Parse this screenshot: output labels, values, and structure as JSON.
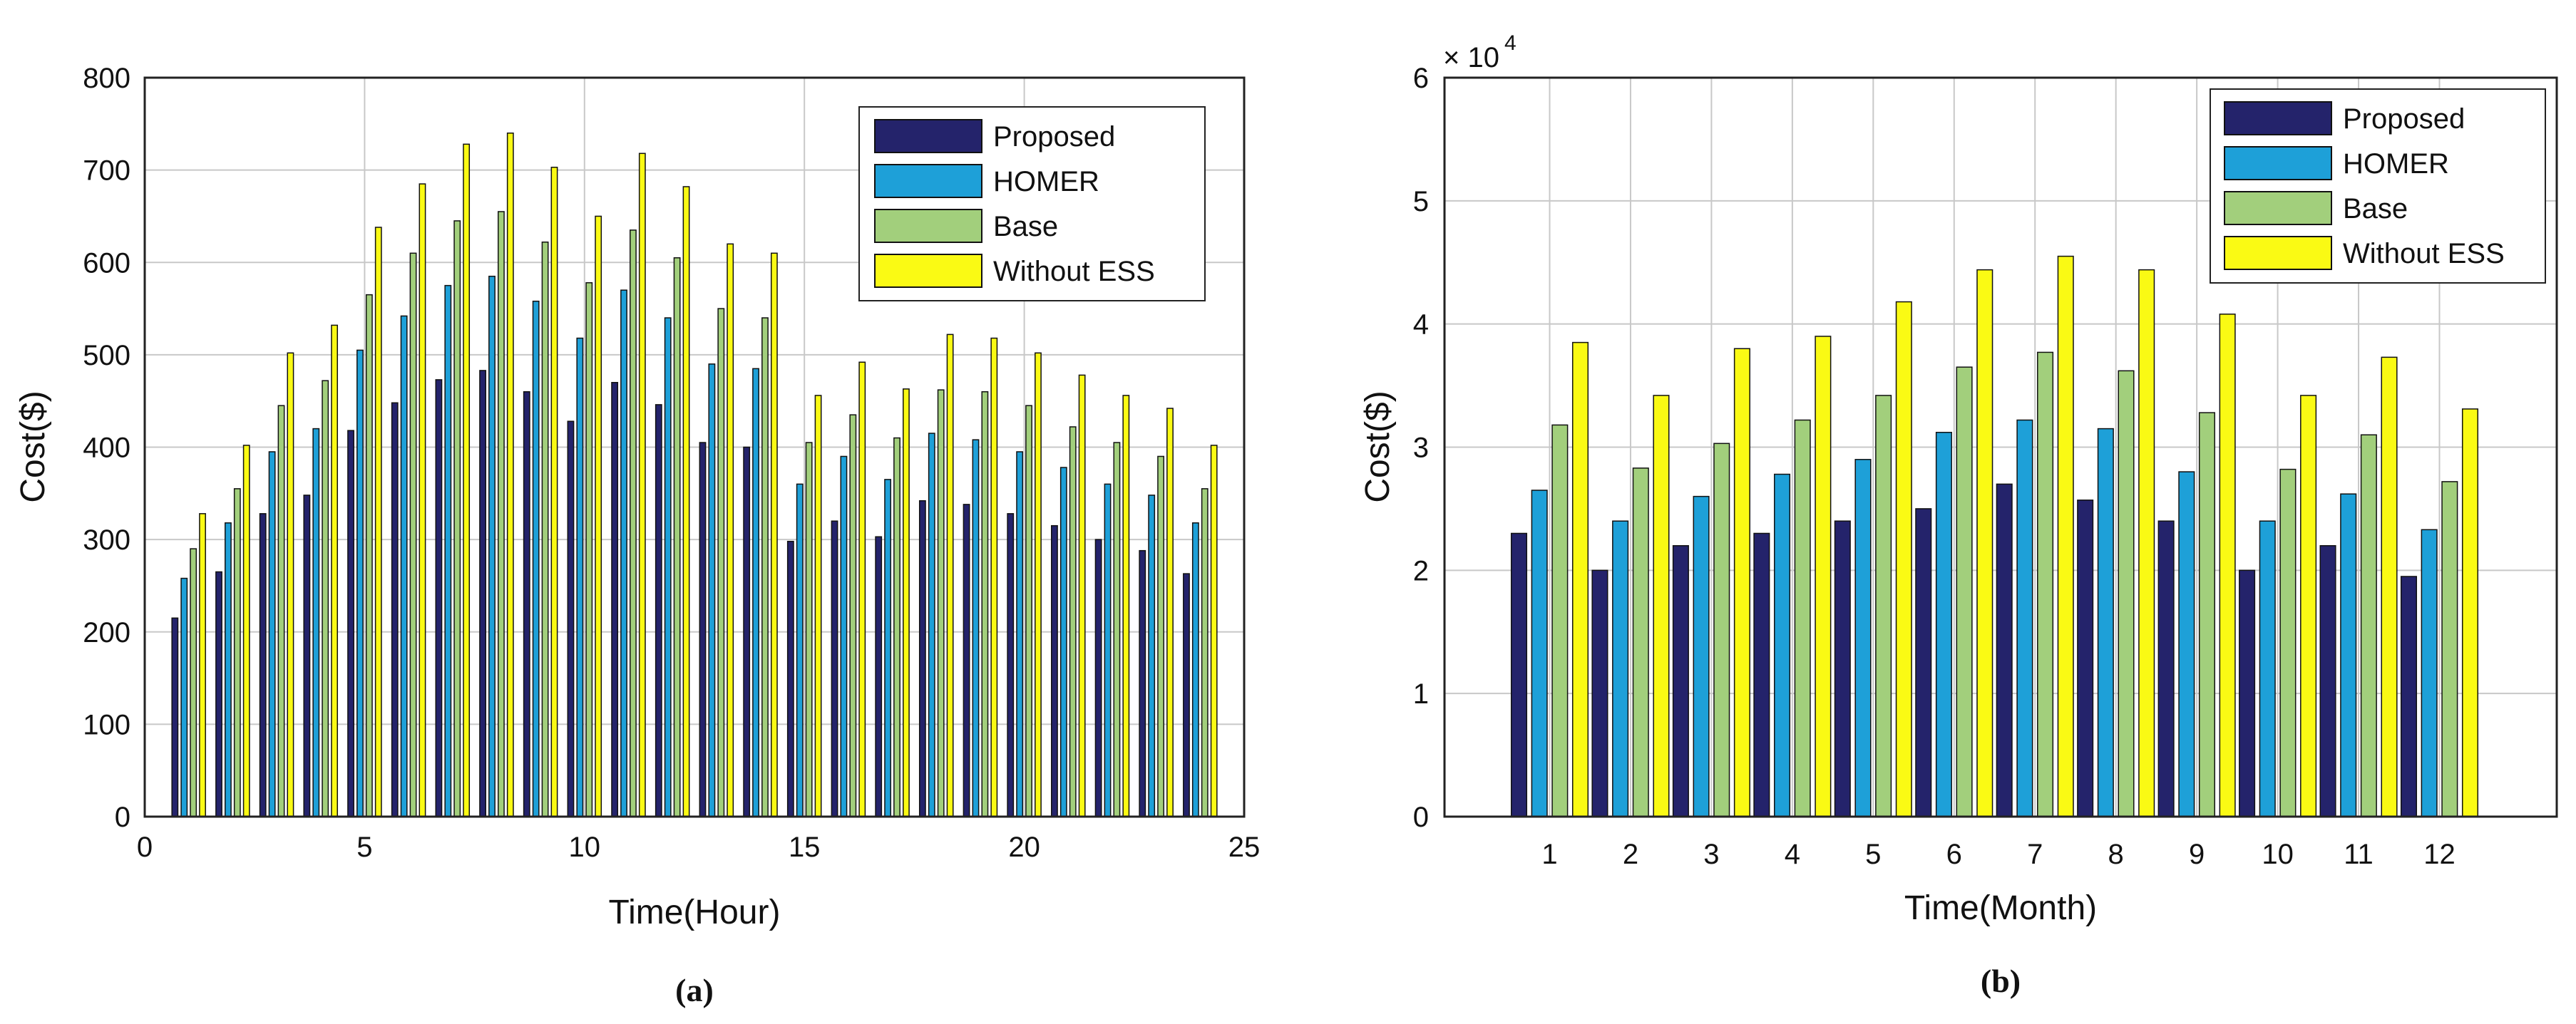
{
  "chart_data": [
    {
      "type": "bar",
      "panel": "(a)",
      "title": "",
      "xlabel": "Time(Hour)",
      "ylabel": "Cost($)",
      "xlim": [
        0,
        25
      ],
      "ylim": [
        0,
        800
      ],
      "xticks": [
        "0",
        "5",
        "10",
        "15",
        "20",
        "25"
      ],
      "yticks": [
        "0",
        "100",
        "200",
        "300",
        "400",
        "500",
        "600",
        "700",
        "800"
      ],
      "grid": true,
      "legend_position": "top-right",
      "categories": [
        1,
        2,
        3,
        4,
        5,
        6,
        7,
        8,
        9,
        10,
        11,
        12,
        13,
        14,
        15,
        16,
        17,
        18,
        19,
        20,
        21,
        22,
        23,
        24
      ],
      "series": [
        {
          "name": "Proposed",
          "color": "#24236b",
          "values": [
            215,
            265,
            328,
            348,
            418,
            448,
            473,
            483,
            460,
            428,
            470,
            446,
            405,
            400,
            298,
            320,
            303,
            342,
            338,
            328,
            315,
            300,
            288,
            263
          ]
        },
        {
          "name": "HOMER",
          "color": "#1ea0d8",
          "values": [
            258,
            318,
            395,
            420,
            505,
            542,
            575,
            585,
            558,
            518,
            570,
            540,
            490,
            485,
            360,
            390,
            365,
            415,
            408,
            395,
            378,
            360,
            348,
            318
          ]
        },
        {
          "name": "Base",
          "color": "#a2cf7c",
          "values": [
            290,
            355,
            445,
            472,
            565,
            610,
            645,
            655,
            622,
            578,
            635,
            605,
            550,
            540,
            405,
            435,
            410,
            462,
            460,
            445,
            422,
            405,
            390,
            355
          ]
        },
        {
          "name": "Without ESS",
          "color": "#fafa14",
          "values": [
            328,
            402,
            502,
            532,
            638,
            685,
            728,
            740,
            703,
            650,
            718,
            682,
            620,
            610,
            456,
            492,
            463,
            522,
            518,
            502,
            478,
            456,
            442,
            402
          ]
        }
      ]
    },
    {
      "type": "bar",
      "panel": "(b)",
      "title": "",
      "xlabel": "Time(Month)",
      "ylabel": "Cost($)",
      "scale_label": "× 10",
      "scale_exponent": "4",
      "ylim": [
        0,
        6
      ],
      "yticks": [
        "0",
        "1",
        "2",
        "3",
        "4",
        "5",
        "6"
      ],
      "grid": true,
      "legend_position": "top-right",
      "categories": [
        "1",
        "2",
        "3",
        "4",
        "5",
        "6",
        "7",
        "8",
        "9",
        "10",
        "11",
        "12"
      ],
      "series": [
        {
          "name": "Proposed",
          "color": "#24236b",
          "values": [
            2.3,
            2.0,
            2.2,
            2.3,
            2.4,
            2.5,
            2.7,
            2.57,
            2.4,
            2.0,
            2.2,
            1.95
          ]
        },
        {
          "name": "HOMER",
          "color": "#1ea0d8",
          "values": [
            2.65,
            2.4,
            2.6,
            2.78,
            2.9,
            3.12,
            3.22,
            3.15,
            2.8,
            2.4,
            2.62,
            2.33
          ]
        },
        {
          "name": "Base",
          "color": "#a2cf7c",
          "values": [
            3.18,
            2.83,
            3.03,
            3.22,
            3.42,
            3.65,
            3.77,
            3.62,
            3.28,
            2.82,
            3.1,
            2.72
          ]
        },
        {
          "name": "Without ESS",
          "color": "#fafa14",
          "values": [
            3.85,
            3.42,
            3.8,
            3.9,
            4.18,
            4.44,
            4.55,
            4.44,
            4.08,
            3.42,
            3.73,
            3.31
          ]
        }
      ]
    }
  ]
}
